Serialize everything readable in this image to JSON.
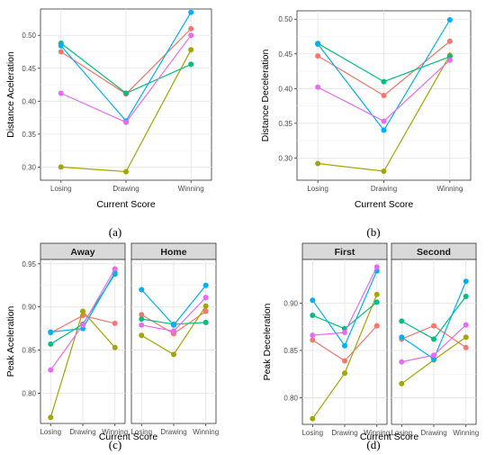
{
  "series_colors": [
    "#F8766D",
    "#A3A500",
    "#00BF7D",
    "#00B0F6",
    "#E76BF3"
  ],
  "panel_a": {
    "caption": "(a)",
    "chart_data": {
      "type": "line",
      "x": [
        "Losing",
        "Drawing",
        "Winning"
      ],
      "xlabel": "Current Score",
      "ylabel": "Distance Aceleration",
      "ylim": [
        0.28,
        0.54
      ],
      "yticks": [
        "0.30",
        "0.35",
        "0.40",
        "0.45",
        "0.50"
      ],
      "grid": true,
      "series": [
        {
          "values": [
            0.475,
            0.411,
            0.51
          ]
        },
        {
          "values": [
            0.3,
            0.293,
            0.478
          ]
        },
        {
          "values": [
            0.488,
            0.412,
            0.456
          ]
        },
        {
          "values": [
            0.484,
            0.37,
            0.535
          ]
        },
        {
          "values": [
            0.412,
            0.368,
            0.5
          ]
        }
      ]
    }
  },
  "panel_b": {
    "caption": "(b)",
    "chart_data": {
      "type": "line",
      "x": [
        "Losing",
        "Drawing",
        "Winning"
      ],
      "xlabel": "Current Score",
      "ylabel": "Distance Deceleration",
      "ylim": [
        0.268,
        0.512
      ],
      "yticks": [
        "0.30",
        "0.35",
        "0.40",
        "0.45",
        "0.50"
      ],
      "grid": true,
      "series": [
        {
          "values": [
            0.447,
            0.39,
            0.468
          ]
        },
        {
          "values": [
            0.292,
            0.281,
            0.448
          ]
        },
        {
          "values": [
            0.465,
            0.41,
            0.446
          ]
        },
        {
          "values": [
            0.464,
            0.34,
            0.499
          ]
        },
        {
          "values": [
            0.402,
            0.353,
            0.441
          ]
        }
      ]
    }
  },
  "panel_c": {
    "caption": "(c)",
    "chart_data": {
      "type": "line",
      "xlabel": "Current Score",
      "ylabel": "Peak Aceleration",
      "ylim": [
        0.765,
        0.955
      ],
      "yticks": [
        "0.80",
        "0.85",
        "0.90",
        "0.95"
      ],
      "grid": true,
      "facets": [
        {
          "title": "Away",
          "x": [
            "Losing",
            "Drawing",
            "Winning"
          ],
          "series": [
            {
              "values": [
                0.87,
                0.89,
                0.881
              ]
            },
            {
              "values": [
                0.772,
                0.895,
                0.853
              ]
            },
            {
              "values": [
                0.857,
                0.88,
                0.938
              ]
            },
            {
              "values": [
                0.871,
                0.875,
                0.94
              ]
            },
            {
              "values": [
                0.827,
                0.879,
                0.944
              ]
            }
          ]
        },
        {
          "title": "Home",
          "x": [
            "Losing",
            "Drawing",
            "Winning"
          ],
          "series": [
            {
              "values": [
                0.891,
                0.869,
                0.895
              ]
            },
            {
              "values": [
                0.867,
                0.845,
                0.901
              ]
            },
            {
              "values": [
                0.886,
                0.88,
                0.882
              ]
            },
            {
              "values": [
                0.92,
                0.879,
                0.925
              ]
            },
            {
              "values": [
                0.879,
                0.872,
                0.911
              ]
            }
          ]
        }
      ]
    }
  },
  "panel_d": {
    "caption": "(d)",
    "chart_data": {
      "type": "line",
      "xlabel": "Current Score",
      "ylabel": "Peak Deceleration",
      "ylim": [
        0.772,
        0.946
      ],
      "yticks": [
        "0.80",
        "0.85",
        "0.90"
      ],
      "grid": true,
      "facets": [
        {
          "title": "First",
          "x": [
            "Losing",
            "Drawing",
            "Winning"
          ],
          "series": [
            {
              "values": [
                0.861,
                0.839,
                0.876
              ]
            },
            {
              "values": [
                0.778,
                0.826,
                0.909
              ]
            },
            {
              "values": [
                0.887,
                0.873,
                0.901
              ]
            },
            {
              "values": [
                0.903,
                0.855,
                0.934
              ]
            },
            {
              "values": [
                0.866,
                0.869,
                0.938
              ]
            }
          ]
        },
        {
          "title": "Second",
          "x": [
            "Losing",
            "Drawing",
            "Winning"
          ],
          "series": [
            {
              "values": [
                0.862,
                0.876,
                0.853
              ]
            },
            {
              "values": [
                0.815,
                0.84,
                0.864
              ]
            },
            {
              "values": [
                0.881,
                0.862,
                0.907
              ]
            },
            {
              "values": [
                0.864,
                0.841,
                0.923
              ]
            },
            {
              "values": [
                0.838,
                0.845,
                0.877
              ]
            }
          ]
        }
      ]
    }
  }
}
